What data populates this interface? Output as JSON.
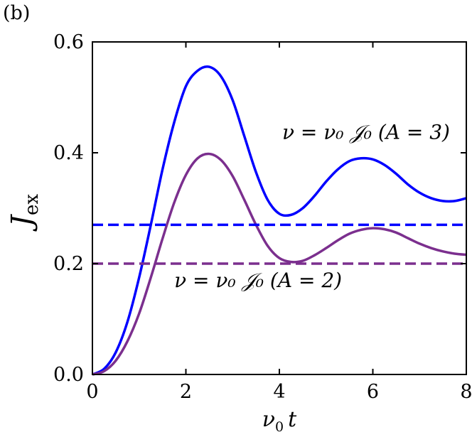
{
  "panel_label": "(b)",
  "chart_data": {
    "type": "line",
    "xlabel": "ν₀ t",
    "ylabel": "J_ex",
    "xlim": [
      0,
      8
    ],
    "ylim": [
      0,
      0.6
    ],
    "xticks": [
      0,
      2,
      4,
      6,
      8
    ],
    "yticks": [
      0.0,
      0.2,
      0.4,
      0.6
    ],
    "xtick_labels": [
      "0",
      "2",
      "4",
      "6",
      "8"
    ],
    "ytick_labels": [
      "0.0",
      "0.2",
      "0.4",
      "0.6"
    ],
    "grid": false,
    "series": [
      {
        "color": "#0000ff",
        "style": "solid",
        "x": [
          0,
          0.25,
          0.5,
          0.75,
          1.0,
          1.25,
          1.5,
          1.75,
          2.0,
          2.25,
          2.5,
          2.75,
          3.0,
          3.25,
          3.5,
          3.75,
          4.0,
          4.25,
          4.5,
          4.75,
          5.0,
          5.25,
          5.5,
          5.75,
          6.0,
          6.25,
          6.5,
          6.75,
          7.0,
          7.25,
          7.5,
          7.75,
          8.0
        ],
        "y": [
          0.0,
          0.01,
          0.04,
          0.095,
          0.175,
          0.27,
          0.37,
          0.455,
          0.52,
          0.548,
          0.555,
          0.538,
          0.495,
          0.43,
          0.365,
          0.315,
          0.29,
          0.288,
          0.3,
          0.322,
          0.348,
          0.37,
          0.385,
          0.39,
          0.388,
          0.378,
          0.362,
          0.343,
          0.328,
          0.318,
          0.313,
          0.313,
          0.318
        ]
      },
      {
        "color": "#7b2f8e",
        "style": "solid",
        "x": [
          0,
          0.25,
          0.5,
          0.75,
          1.0,
          1.25,
          1.5,
          1.75,
          2.0,
          2.25,
          2.5,
          2.75,
          3.0,
          3.25,
          3.5,
          3.75,
          4.0,
          4.25,
          4.5,
          4.75,
          5.0,
          5.25,
          5.5,
          5.75,
          6.0,
          6.25,
          6.5,
          6.75,
          7.0,
          7.25,
          7.5,
          7.75,
          8.0
        ],
        "y": [
          0.0,
          0.006,
          0.025,
          0.06,
          0.11,
          0.175,
          0.245,
          0.31,
          0.36,
          0.39,
          0.398,
          0.387,
          0.358,
          0.315,
          0.27,
          0.232,
          0.21,
          0.203,
          0.205,
          0.215,
          0.228,
          0.242,
          0.254,
          0.261,
          0.264,
          0.262,
          0.256,
          0.246,
          0.236,
          0.228,
          0.222,
          0.218,
          0.216
        ]
      },
      {
        "color": "#0000ff",
        "style": "dashed",
        "x": [
          0,
          8
        ],
        "y": [
          0.27,
          0.27
        ]
      },
      {
        "color": "#7b2f8e",
        "style": "dashed",
        "x": [
          0,
          8
        ],
        "y": [
          0.2,
          0.2
        ]
      }
    ],
    "annotations": [
      {
        "text": "ν = ν₀ 𝒥₀ (A = 3)",
        "x": 7.65,
        "y": 0.425,
        "anchor": "end"
      },
      {
        "text": "ν = ν₀ 𝒥₀ (A = 2)",
        "x": 1.75,
        "y": 0.158,
        "anchor": "start"
      }
    ]
  }
}
